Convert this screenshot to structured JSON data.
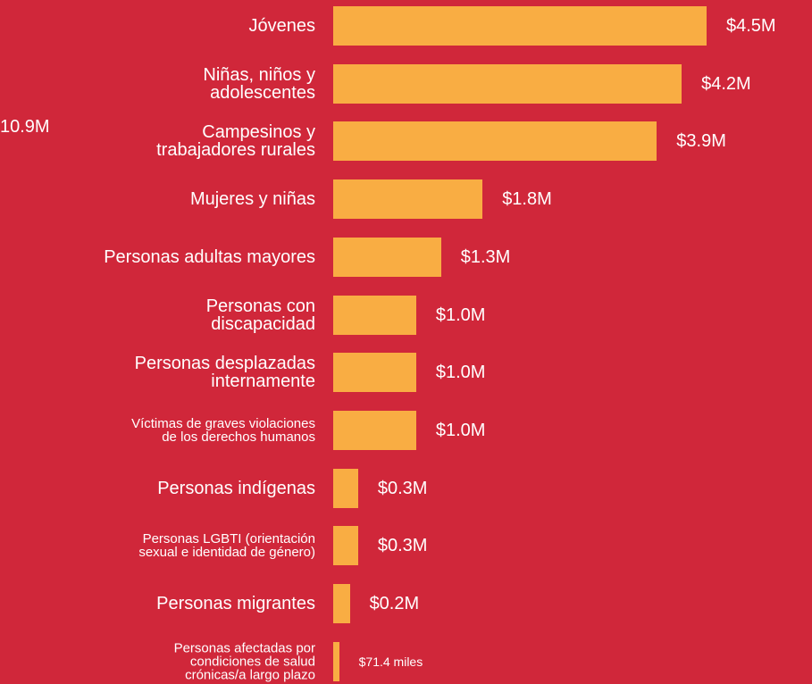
{
  "chart_data": {
    "type": "bar",
    "orientation": "horizontal",
    "annotation": "10.9M",
    "categories": [
      "Jóvenes",
      "Niñas, niños y\nadolescentes",
      "Campesinos y\ntrabajadores rurales",
      "Mujeres y niñas",
      "Personas adultas mayores",
      "Personas con\ndiscapacidad",
      "Personas desplazadas\ninternamente",
      "Víctimas de graves violaciones\nde los derechos humanos",
      "Personas indígenas",
      "Personas LGBTI (orientación\nsexual e identidad de género)",
      "Personas migrantes",
      "Personas afectadas por\ncondiciones de salud\ncrónicas/a largo plazo"
    ],
    "values": [
      4500000,
      4200000,
      3900000,
      1800000,
      1300000,
      1000000,
      1000000,
      1000000,
      300000,
      300000,
      200000,
      71400
    ],
    "value_labels": [
      "$4.5M",
      "$4.2M",
      "$3.9M",
      "$1.8M",
      "$1.3M",
      "$1.0M",
      "$1.0M",
      "$1.0M",
      "$0.3M",
      "$0.3M",
      "$0.2M",
      "$71.4 miles"
    ],
    "color": "#f9ad43",
    "xlim": [
      0,
      4500000
    ]
  }
}
